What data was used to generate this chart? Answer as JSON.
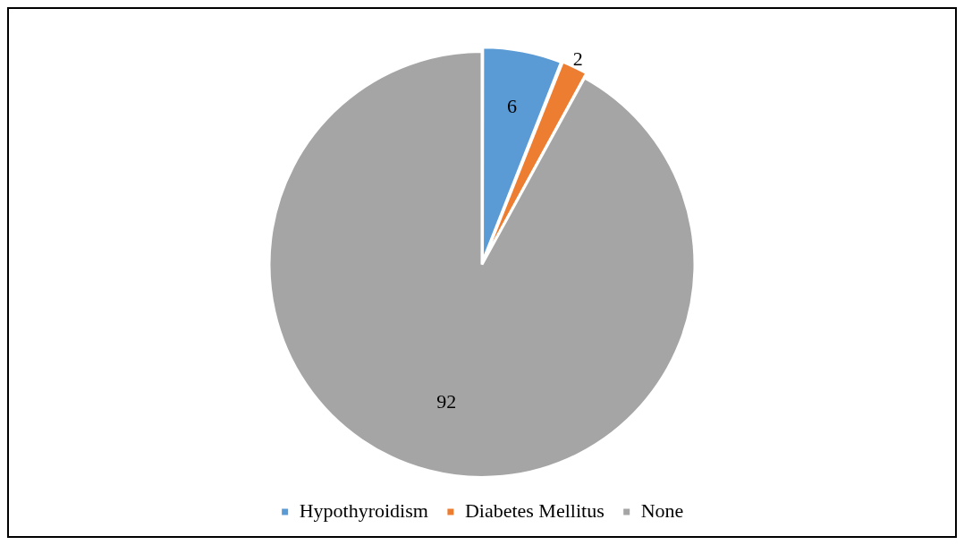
{
  "chart_data": {
    "type": "pie",
    "categories": [
      "Hypothyroidism",
      "Diabetes Mellitus",
      "None"
    ],
    "values": [
      6,
      2,
      92
    ],
    "colors": [
      "#5b9bd5",
      "#ed7d31",
      "#a5a5a5"
    ],
    "data_labels": true,
    "legend": "bottom"
  }
}
